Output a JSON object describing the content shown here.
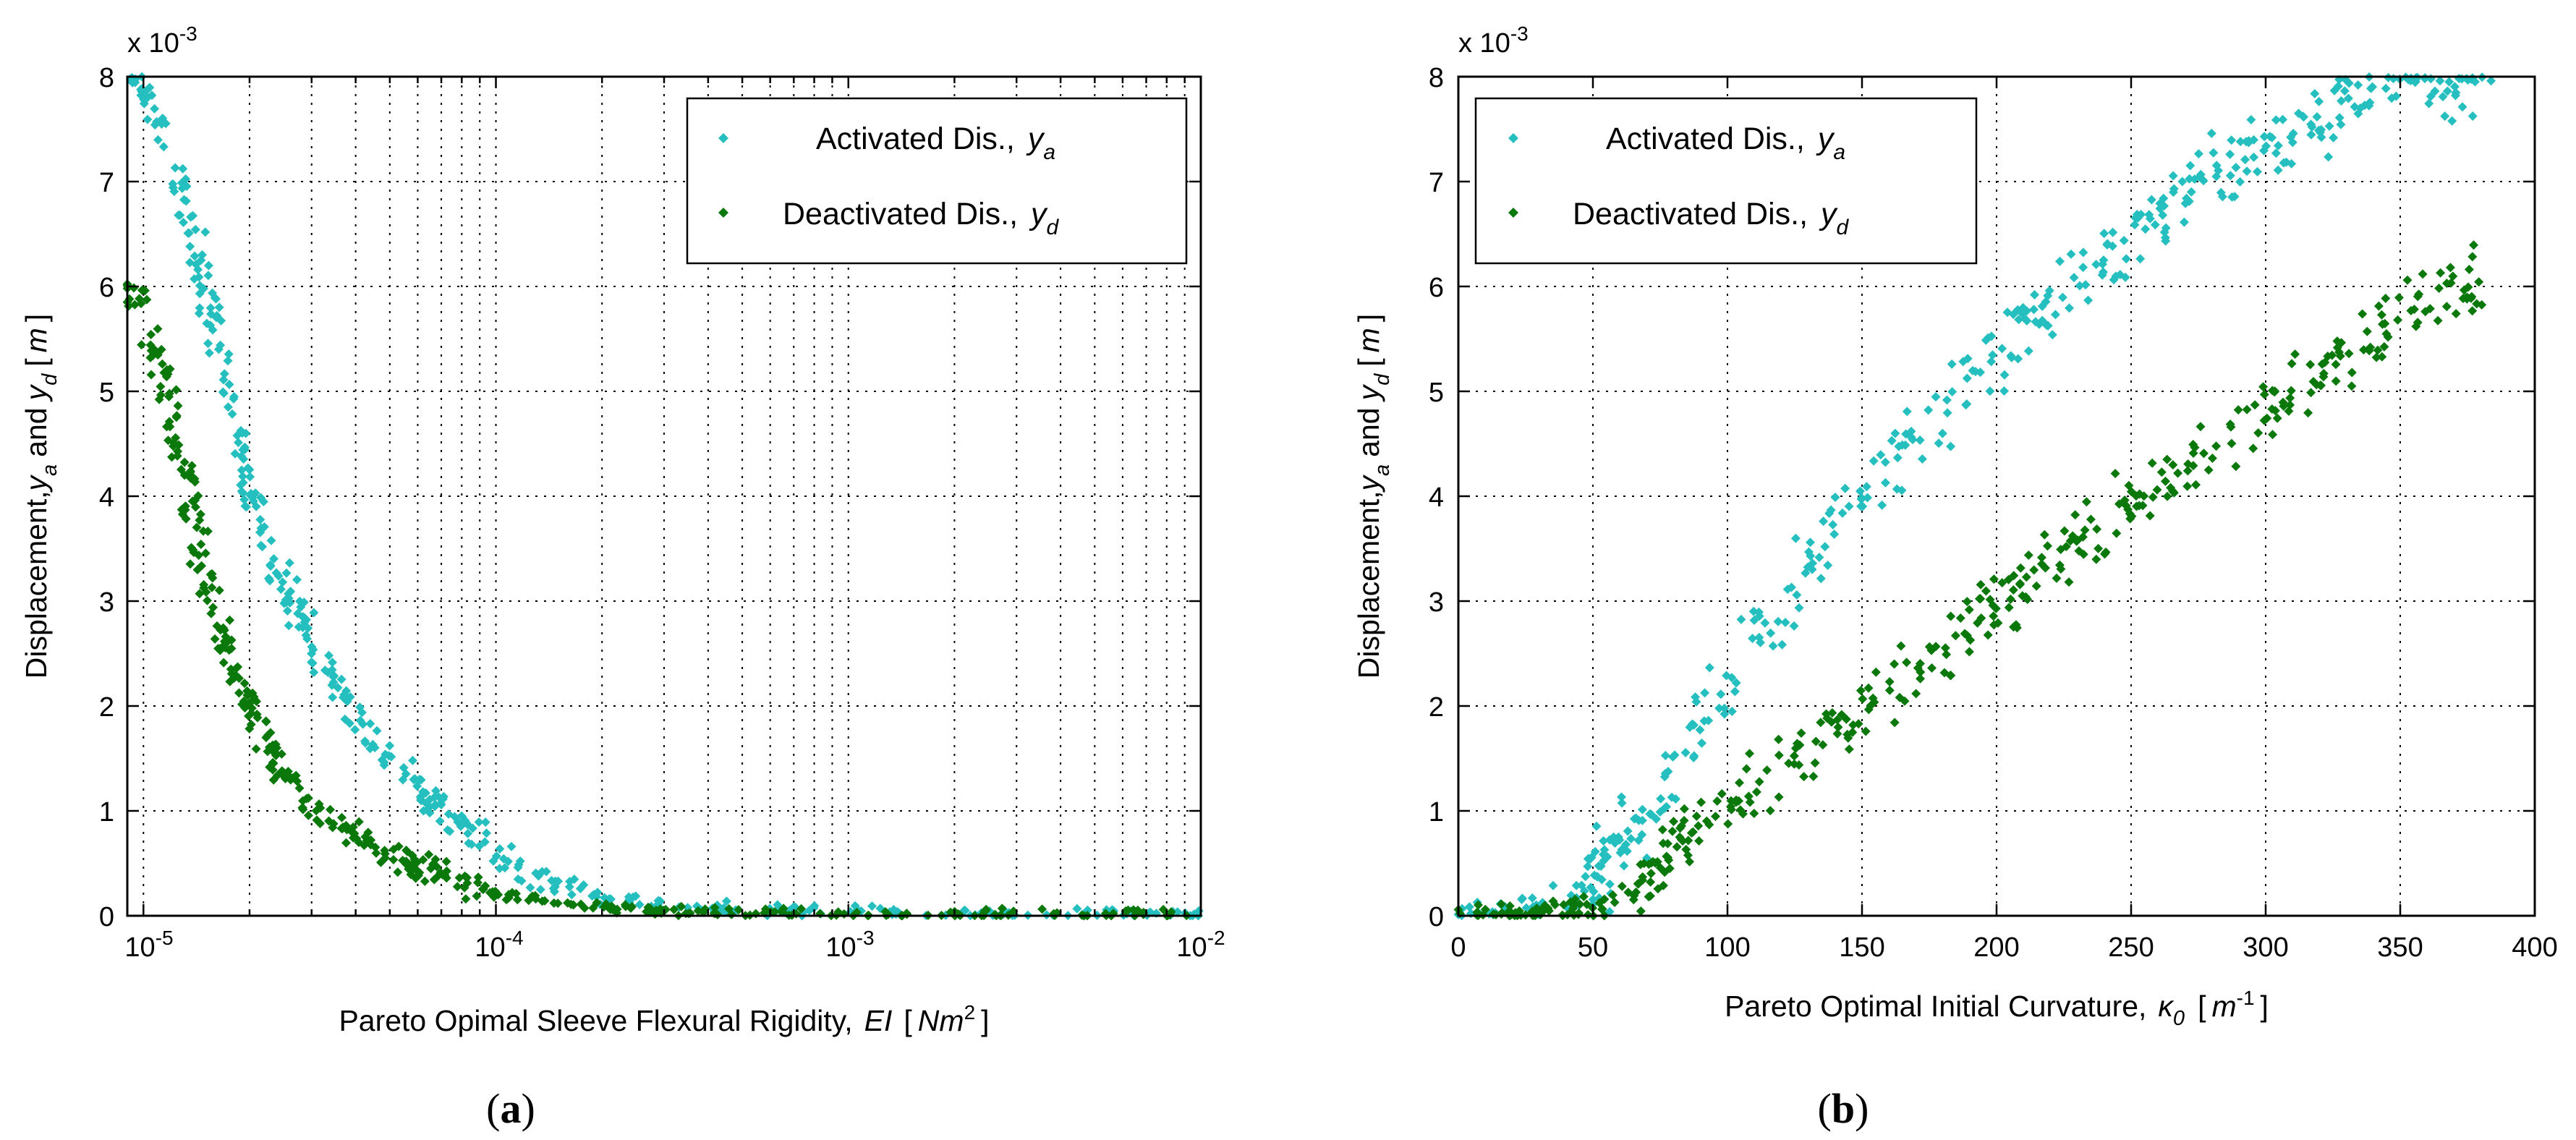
{
  "chart_data": [
    {
      "type": "scatter",
      "panel_label_open": "(",
      "panel_label_letter": "a",
      "panel_label_close": ")",
      "xscale": "log",
      "xlim": [
        9e-06,
        0.01
      ],
      "ylim": [
        0,
        0.008
      ],
      "y_multiplier_base": "x 10",
      "y_multiplier_exp": "-3",
      "xtick_values": [
        1e-05,
        0.0001,
        0.001,
        0.01
      ],
      "xtick_mantissa": "10",
      "xtick_exponents": [
        "-5",
        "-4",
        "-3",
        "-2"
      ],
      "ytick_values": [
        0,
        1,
        2,
        3,
        4,
        5,
        6,
        7,
        8
      ],
      "ytick_labels": [
        "0",
        "1",
        "2",
        "3",
        "4",
        "5",
        "6",
        "7",
        "8"
      ],
      "xlabel_prefix": "Pareto Opimal Sleeve Flexural Rigidity,",
      "xlabel_symbol": "EI",
      "xlabel_unit_open": "[",
      "xlabel_unit": "Nm",
      "xlabel_unit_exp": "2",
      "xlabel_unit_close": "]",
      "ylabel_prefix": "Displacement,",
      "ylabel_ya": "y",
      "ylabel_ya_sub": "a",
      "ylabel_and": "and",
      "ylabel_yd": "y",
      "ylabel_yd_sub": "d",
      "ylabel_unit_open": "[",
      "ylabel_unit": "m",
      "ylabel_unit_close": "]",
      "grid": true,
      "legend_position": "top-right",
      "series": [
        {
          "name": "Activated Dis.,",
          "symbol": "y",
          "subscript": "a",
          "color": "#26bfbf",
          "x": [
            9.25e-06,
            9.7e-06,
            1.03e-05,
            1.1e-05,
            1.18e-05,
            1.25e-05,
            1.32e-05,
            1.4e-05,
            1.48e-05,
            1.57e-05,
            1.68e-05,
            1.8e-05,
            1.95e-05,
            2.1e-05,
            2.3e-05,
            2.6e-05,
            2.9e-05,
            3.3e-05,
            3.8e-05,
            4.5e-05,
            5.5e-05,
            6.8e-05,
            8.5e-05,
            0.00011,
            0.00015,
            0.0002,
            0.0003,
            0.0005,
            0.0008,
            0.0015,
            0.003,
            0.006,
            0.01
          ],
          "y": [
            8.0,
            7.95,
            7.85,
            7.6,
            7.3,
            7.0,
            6.7,
            6.4,
            6.0,
            5.6,
            5.1,
            4.6,
            4.2,
            3.8,
            3.4,
            3.0,
            2.7,
            2.3,
            2.0,
            1.7,
            1.35,
            1.05,
            0.8,
            0.5,
            0.3,
            0.17,
            0.1,
            0.06,
            0.04,
            0.03,
            0.02,
            0.02,
            0.02
          ],
          "spread": 0.12
        },
        {
          "name": "Deactivated Dis.,",
          "symbol": "y",
          "subscript": "d",
          "color": "#0a780a",
          "x": [
            9.25e-06,
            9.7e-06,
            1.03e-05,
            1.1e-05,
            1.18e-05,
            1.25e-05,
            1.32e-05,
            1.4e-05,
            1.48e-05,
            1.57e-05,
            1.68e-05,
            1.8e-05,
            1.95e-05,
            2.1e-05,
            2.3e-05,
            2.6e-05,
            2.9e-05,
            3.3e-05,
            3.8e-05,
            4.5e-05,
            5.5e-05,
            6.8e-05,
            8.5e-05,
            0.00011,
            0.00015,
            0.0002,
            0.0003,
            0.0005,
            0.0008,
            0.0015,
            0.003,
            0.006,
            0.01
          ],
          "y": [
            6.1,
            5.9,
            5.6,
            5.3,
            4.9,
            4.5,
            4.1,
            3.7,
            3.3,
            2.95,
            2.65,
            2.35,
            2.1,
            1.8,
            1.55,
            1.3,
            1.1,
            0.95,
            0.8,
            0.65,
            0.5,
            0.4,
            0.3,
            0.2,
            0.12,
            0.08,
            0.05,
            0.03,
            0.02,
            0.02,
            0.015,
            0.015,
            0.015
          ],
          "spread": 0.1
        }
      ]
    },
    {
      "type": "scatter",
      "panel_label_open": "(",
      "panel_label_letter": "b",
      "panel_label_close": ")",
      "xscale": "linear",
      "xlim": [
        0,
        400
      ],
      "ylim": [
        0,
        0.008
      ],
      "y_multiplier_base": "x 10",
      "y_multiplier_exp": "-3",
      "xtick_values": [
        0,
        50,
        100,
        150,
        200,
        250,
        300,
        350,
        400
      ],
      "xtick_labels": [
        "0",
        "50",
        "100",
        "150",
        "200",
        "250",
        "300",
        "350",
        "400"
      ],
      "ytick_values": [
        0,
        1,
        2,
        3,
        4,
        5,
        6,
        7,
        8
      ],
      "ytick_labels": [
        "0",
        "1",
        "2",
        "3",
        "4",
        "5",
        "6",
        "7",
        "8"
      ],
      "xlabel_prefix": "Pareto Optimal Initial Curvature,",
      "xlabel_symbol": "κ",
      "xlabel_symbol_sub": "0",
      "xlabel_unit_open": "[",
      "xlabel_unit": "m",
      "xlabel_unit_exp": "-1",
      "xlabel_unit_close": "]",
      "ylabel_prefix": "Displacement,",
      "ylabel_ya": "y",
      "ylabel_ya_sub": "a",
      "ylabel_and": "and",
      "ylabel_yd": "y",
      "ylabel_yd_sub": "d",
      "ylabel_unit_open": "[",
      "ylabel_unit": "m",
      "ylabel_unit_close": "]",
      "grid": true,
      "legend_position": "top-left",
      "series": [
        {
          "name": "Activated Dis.,",
          "symbol": "y",
          "subscript": "a",
          "color": "#26bfbf",
          "x": [
            0,
            10,
            20,
            30,
            40,
            50,
            55,
            60,
            65,
            70,
            80,
            90,
            100,
            110,
            120,
            130,
            140,
            150,
            160,
            170,
            180,
            190,
            200,
            210,
            220,
            230,
            240,
            250,
            260,
            270,
            280,
            290,
            300,
            310,
            320,
            330,
            340,
            350,
            360,
            370,
            380
          ],
          "y": [
            0.0,
            0.02,
            0.05,
            0.1,
            0.2,
            0.35,
            0.5,
            0.65,
            0.85,
            1.05,
            1.4,
            1.75,
            2.2,
            2.55,
            2.85,
            3.3,
            3.7,
            4.0,
            4.3,
            4.6,
            4.85,
            5.1,
            5.35,
            5.6,
            5.8,
            6.0,
            6.2,
            6.5,
            6.75,
            6.9,
            7.05,
            7.2,
            7.4,
            7.5,
            7.65,
            7.8,
            7.9,
            7.95,
            8.0,
            8.0,
            8.0
          ],
          "spread": 0.28
        },
        {
          "name": "Deactivated Dis.,",
          "symbol": "y",
          "subscript": "d",
          "color": "#0a780a",
          "x": [
            0,
            10,
            20,
            30,
            40,
            50,
            60,
            70,
            75,
            80,
            90,
            100,
            110,
            120,
            130,
            140,
            150,
            160,
            170,
            180,
            190,
            200,
            210,
            220,
            230,
            240,
            250,
            260,
            270,
            280,
            290,
            300,
            310,
            320,
            330,
            340,
            350,
            360,
            370,
            380
          ],
          "y": [
            0.0,
            0.0,
            0.01,
            0.02,
            0.04,
            0.08,
            0.15,
            0.3,
            0.5,
            0.65,
            0.85,
            1.0,
            1.2,
            1.4,
            1.6,
            1.8,
            2.0,
            2.2,
            2.4,
            2.55,
            2.75,
            2.95,
            3.15,
            3.35,
            3.55,
            3.75,
            3.95,
            4.1,
            4.3,
            4.45,
            4.65,
            4.8,
            5.0,
            5.15,
            5.35,
            5.55,
            5.7,
            5.85,
            6.0,
            6.1
          ],
          "spread": 0.22
        }
      ]
    }
  ]
}
